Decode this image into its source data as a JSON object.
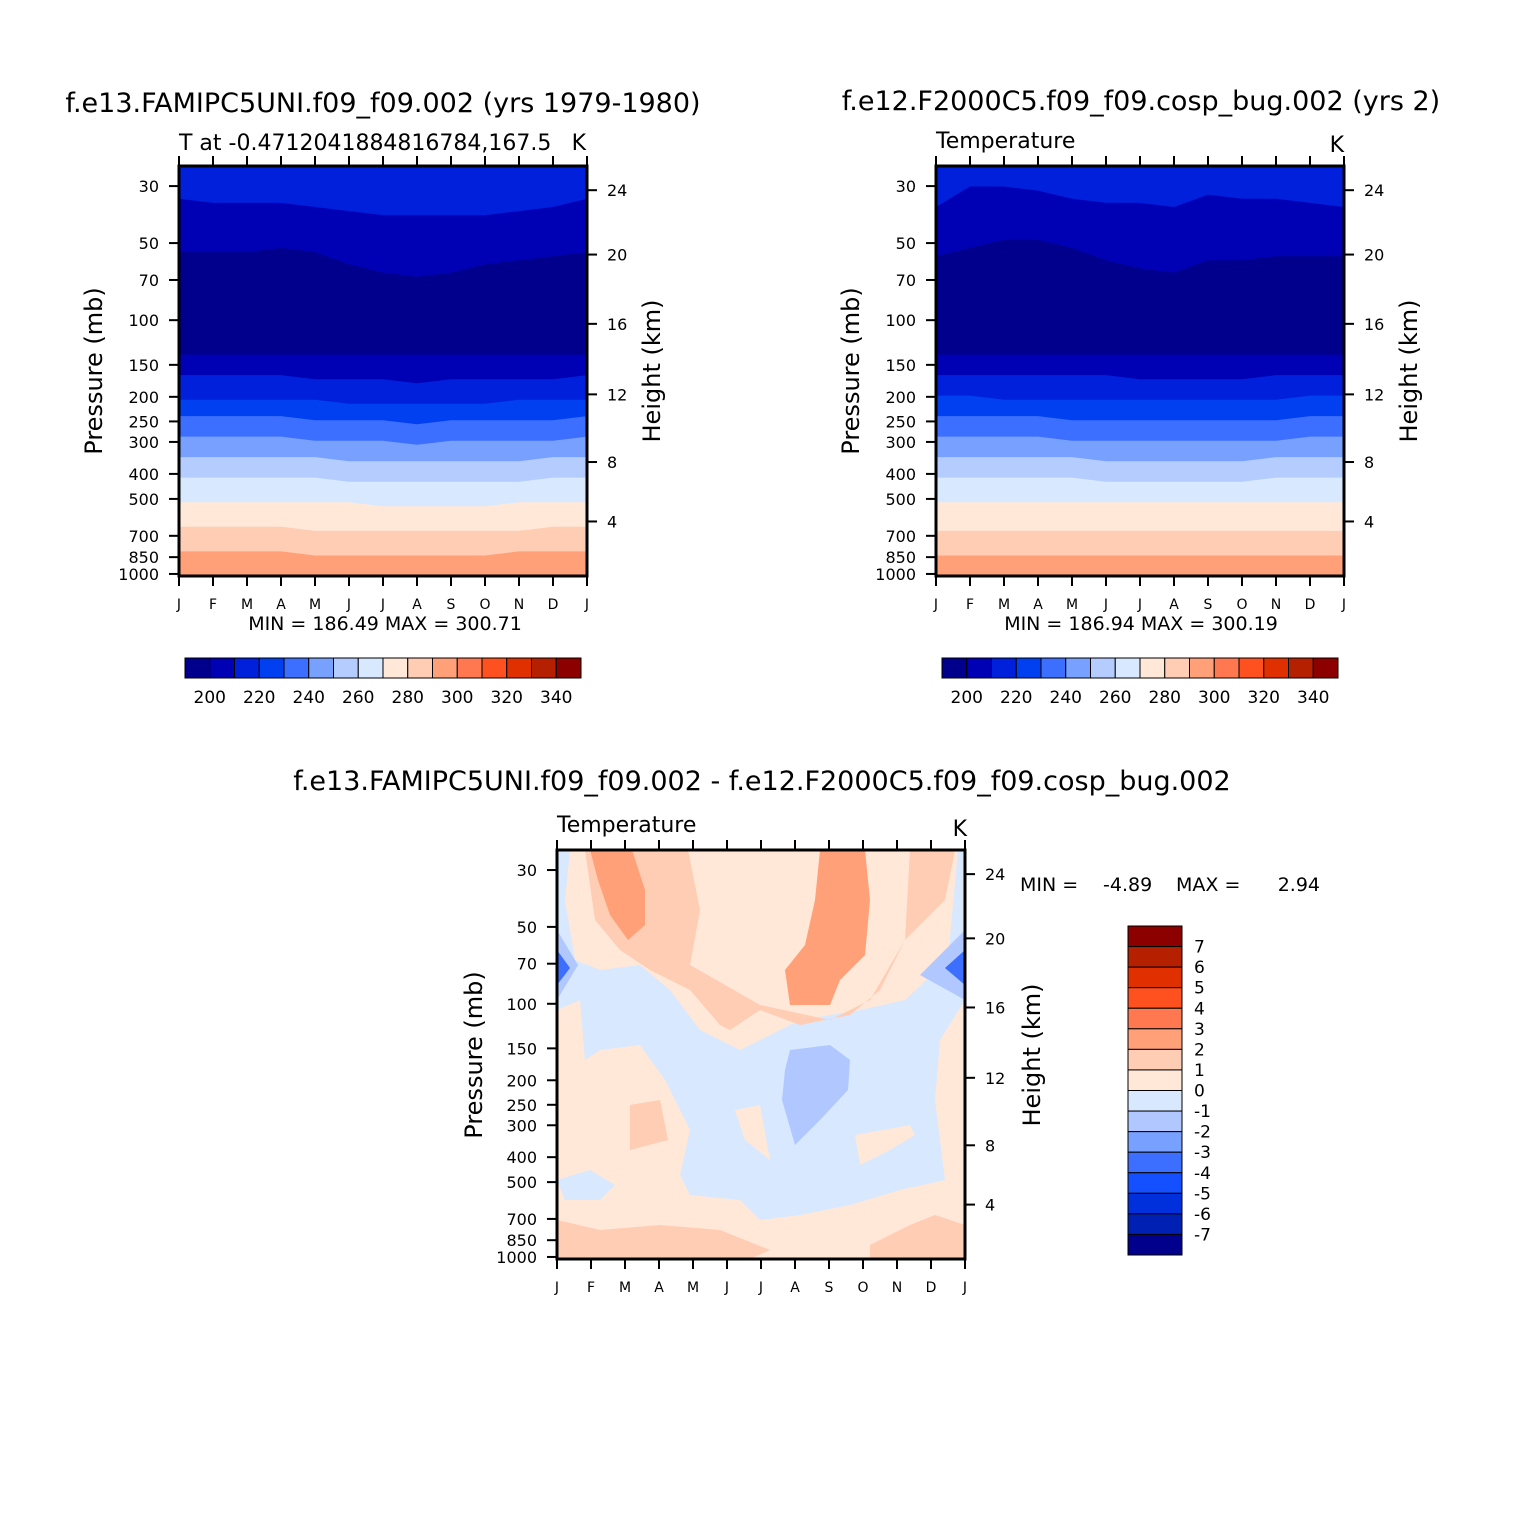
{
  "colors": {
    "temp_palette": [
      "#00008c",
      "#0000b4",
      "#0020dc",
      "#0040f0",
      "#3c6eff",
      "#78a0ff",
      "#b4ccff",
      "#d8e8ff",
      "#ffe8d8",
      "#ffccb4",
      "#ffa078",
      "#ff7850",
      "#ff5020",
      "#e03000",
      "#b42000",
      "#8c0000"
    ],
    "diff_palette": [
      "#00008c",
      "#0020b4",
      "#0030dc",
      "#1450ff",
      "#3c6eff",
      "#78a0ff",
      "#b0c8ff",
      "#d8e8ff",
      "#ffe8d8",
      "#ffccb4",
      "#ffa078",
      "#ff7850",
      "#ff5020",
      "#e03000",
      "#b42000",
      "#8c0000"
    ]
  },
  "chart_data": [
    {
      "type": "heatmap",
      "id": "panel1",
      "title": "f.e13.FAMIPC5UNI.f09_f09.002 (yrs 1979-1980)",
      "subtitle_left": "T at -0.4712041884816784,167.5",
      "subtitle_right": "K",
      "ylabel": "Pressure (mb)",
      "ylabel_right": "Height (km)",
      "x_ticks": [
        "J",
        "F",
        "M",
        "A",
        "M",
        "J",
        "J",
        "A",
        "S",
        "O",
        "N",
        "D",
        "J"
      ],
      "y_ticks": [
        "30",
        "50",
        "70",
        "100",
        "150",
        "200",
        "250",
        "300",
        "400",
        "500",
        "700",
        "850",
        "1000"
      ],
      "y_ticks_right": [
        "24",
        "20",
        "16",
        "12",
        "8",
        "4"
      ],
      "minmax": "MIN = 186.49 MAX = 300.71",
      "levels": [
        200,
        210,
        220,
        230,
        240,
        250,
        260,
        270,
        280,
        290,
        300,
        310,
        320,
        330,
        340
      ],
      "colorbar_labels": [
        "200",
        "220",
        "240",
        "260",
        "280",
        "300",
        "320",
        "340"
      ],
      "ylim": [
        1000,
        25
      ]
    },
    {
      "type": "heatmap",
      "id": "panel2",
      "title": "f.e12.F2000C5.f09_f09.cosp_bug.002 (yrs 2)",
      "subtitle_left": "Temperature",
      "subtitle_right": "K",
      "ylabel": "Pressure (mb)",
      "ylabel_right": "Height (km)",
      "x_ticks": [
        "J",
        "F",
        "M",
        "A",
        "M",
        "J",
        "J",
        "A",
        "S",
        "O",
        "N",
        "D",
        "J"
      ],
      "y_ticks": [
        "30",
        "50",
        "70",
        "100",
        "150",
        "200",
        "250",
        "300",
        "400",
        "500",
        "700",
        "850",
        "1000"
      ],
      "y_ticks_right": [
        "24",
        "20",
        "16",
        "12",
        "8",
        "4"
      ],
      "minmax": "MIN = 186.94 MAX = 300.19",
      "levels": [
        200,
        210,
        220,
        230,
        240,
        250,
        260,
        270,
        280,
        290,
        300,
        310,
        320,
        330,
        340
      ],
      "colorbar_labels": [
        "200",
        "220",
        "240",
        "260",
        "280",
        "300",
        "320",
        "340"
      ],
      "ylim": [
        1000,
        25
      ]
    },
    {
      "type": "heatmap",
      "id": "panel3",
      "title": "f.e13.FAMIPC5UNI.f09_f09.002 - f.e12.F2000C5.f09_f09.cosp_bug.002",
      "subtitle_left": "Temperature",
      "subtitle_right": "K",
      "ylabel": "Pressure (mb)",
      "ylabel_right": "Height (km)",
      "x_ticks": [
        "J",
        "F",
        "M",
        "A",
        "M",
        "J",
        "J",
        "A",
        "S",
        "O",
        "N",
        "D",
        "J"
      ],
      "y_ticks": [
        "30",
        "50",
        "70",
        "100",
        "150",
        "200",
        "250",
        "300",
        "400",
        "500",
        "700",
        "850",
        "1000"
      ],
      "y_ticks_right": [
        "24",
        "20",
        "16",
        "12",
        "8",
        "4"
      ],
      "min_label": "MIN =",
      "min_value": "-4.89",
      "max_label": "MAX =",
      "max_value": "2.94",
      "levels": [
        -7,
        -6,
        -5,
        -4,
        -3,
        -2,
        -1,
        0,
        1,
        2,
        3,
        4,
        5,
        6,
        7
      ],
      "colorbar_labels": [
        "7",
        "6",
        "5",
        "4",
        "3",
        "2",
        "1",
        "0",
        "-1",
        "-2",
        "-3",
        "-4",
        "-5",
        "-6",
        "-7"
      ],
      "ylim": [
        1000,
        25
      ]
    }
  ]
}
